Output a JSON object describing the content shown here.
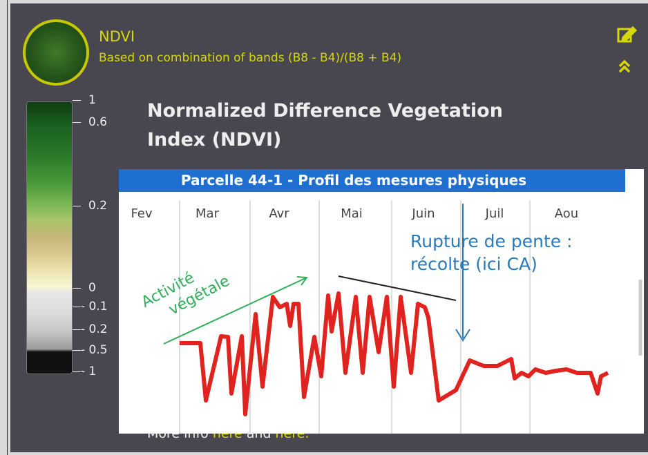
{
  "header": {
    "title": "NDVI",
    "subtitle": "Based on combination of bands (B8 - B4)/(B8 + B4)"
  },
  "legend": {
    "ticks": [
      "1",
      "0.6",
      "0.2",
      "0",
      "- 0.1",
      "- 0.2",
      "- 0.5",
      "- 1"
    ]
  },
  "description": {
    "title": "Normalized Difference Vegetation Index (NDVI)"
  },
  "overlay": {
    "title": "Parcelle 44-1 - Profil des mesures physiques",
    "months": [
      "Fev",
      "Mar",
      "Avr",
      "Mai",
      "Juin",
      "Juil",
      "Aou"
    ],
    "annotation": [
      "Rupture de pente :",
      "récolte (ici CA)"
    ],
    "label": [
      "Activité",
      "végétale"
    ]
  },
  "footer": {
    "text": "More info",
    "link1": "here",
    "connector": "and",
    "link2": "here."
  }
}
